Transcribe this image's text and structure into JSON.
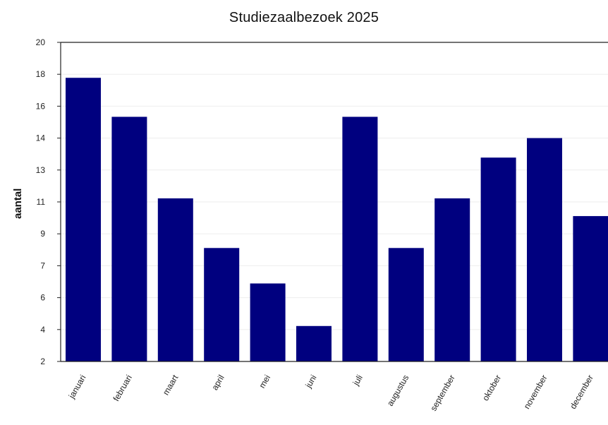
{
  "chart_data": {
    "type": "bar",
    "title": "Studiezaalbezoek 2025",
    "xlabel": "",
    "ylabel": "aantal",
    "ylim": [
      2,
      20
    ],
    "yticks": [
      2,
      4,
      6,
      7,
      9,
      11,
      13,
      14,
      16,
      18,
      20
    ],
    "grid": true,
    "categories": [
      "januari",
      "februari",
      "maart",
      "april",
      "mei",
      "juni",
      "juli",
      "augustus",
      "september",
      "oktober",
      "november",
      "december"
    ],
    "series": [
      {
        "values": [
          18.0,
          15.8,
          11.2,
          8.4,
          6.4,
          4.0,
          15.8,
          8.4,
          11.2,
          13.5,
          14.6,
          10.2
        ]
      }
    ],
    "colors": {
      "bar": "#00007f",
      "axis": "#222222",
      "grid": "#eeeeee"
    }
  }
}
